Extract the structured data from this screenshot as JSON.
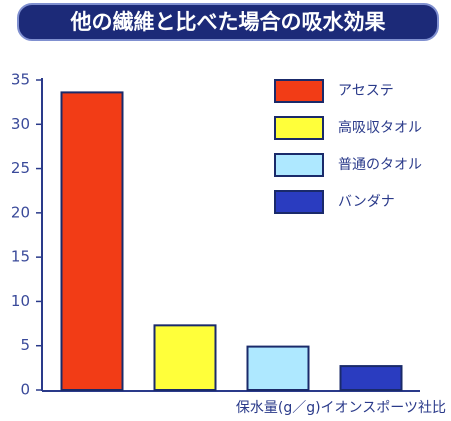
{
  "chart_data": {
    "type": "bar",
    "title": "他の繊維と比べた場合の吸水効果",
    "categories": [
      "アセステ",
      "高吸収タオル",
      "普通のタオル",
      "バンダナ"
    ],
    "values": [
      33.6,
      7.3,
      4.9,
      2.7
    ],
    "colors": [
      "#f23c16",
      "#ffff3a",
      "#aee8ff",
      "#2a3cc0"
    ],
    "x_label": "保水量(g／g)イオンスポーツ社比",
    "ylim": [
      0,
      35
    ],
    "yticks": [
      0,
      5,
      10,
      15,
      20,
      25,
      30,
      35
    ],
    "grid": false,
    "legend": "top-right"
  }
}
